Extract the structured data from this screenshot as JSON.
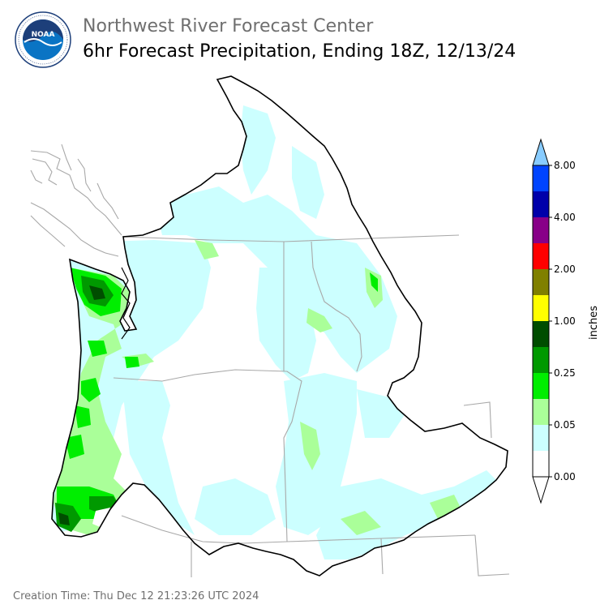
{
  "header": {
    "org": "Northwest River Forecast Center",
    "product": "6hr Forecast Precipitation, Ending 18Z, 12/13/24"
  },
  "logo": {
    "text": "NOAA",
    "ring_text": "NATIONAL OCEANIC AND ATMOSPHERIC ADMINISTRATION · U.S. DEPARTMENT OF COMMERCE"
  },
  "colorbar": {
    "unit_label": "inches",
    "tick_labels": [
      "0.00",
      "0.05",
      "0.25",
      "1.00",
      "2.00",
      "4.00",
      "8.00"
    ],
    "colors": [
      "#ffffff",
      "#ccffff",
      "#aaff99",
      "#00ee00",
      "#009900",
      "#004d00",
      "#ffff00",
      "#808000",
      "#ff0000",
      "#880088",
      "#0000aa",
      "#0044ff"
    ],
    "over_color": "#88ccff",
    "under_color": "#ffffff"
  },
  "footer": {
    "label": "Creation Time:",
    "value": "Thu Dec 12 21:23:26 UTC 2024"
  }
}
